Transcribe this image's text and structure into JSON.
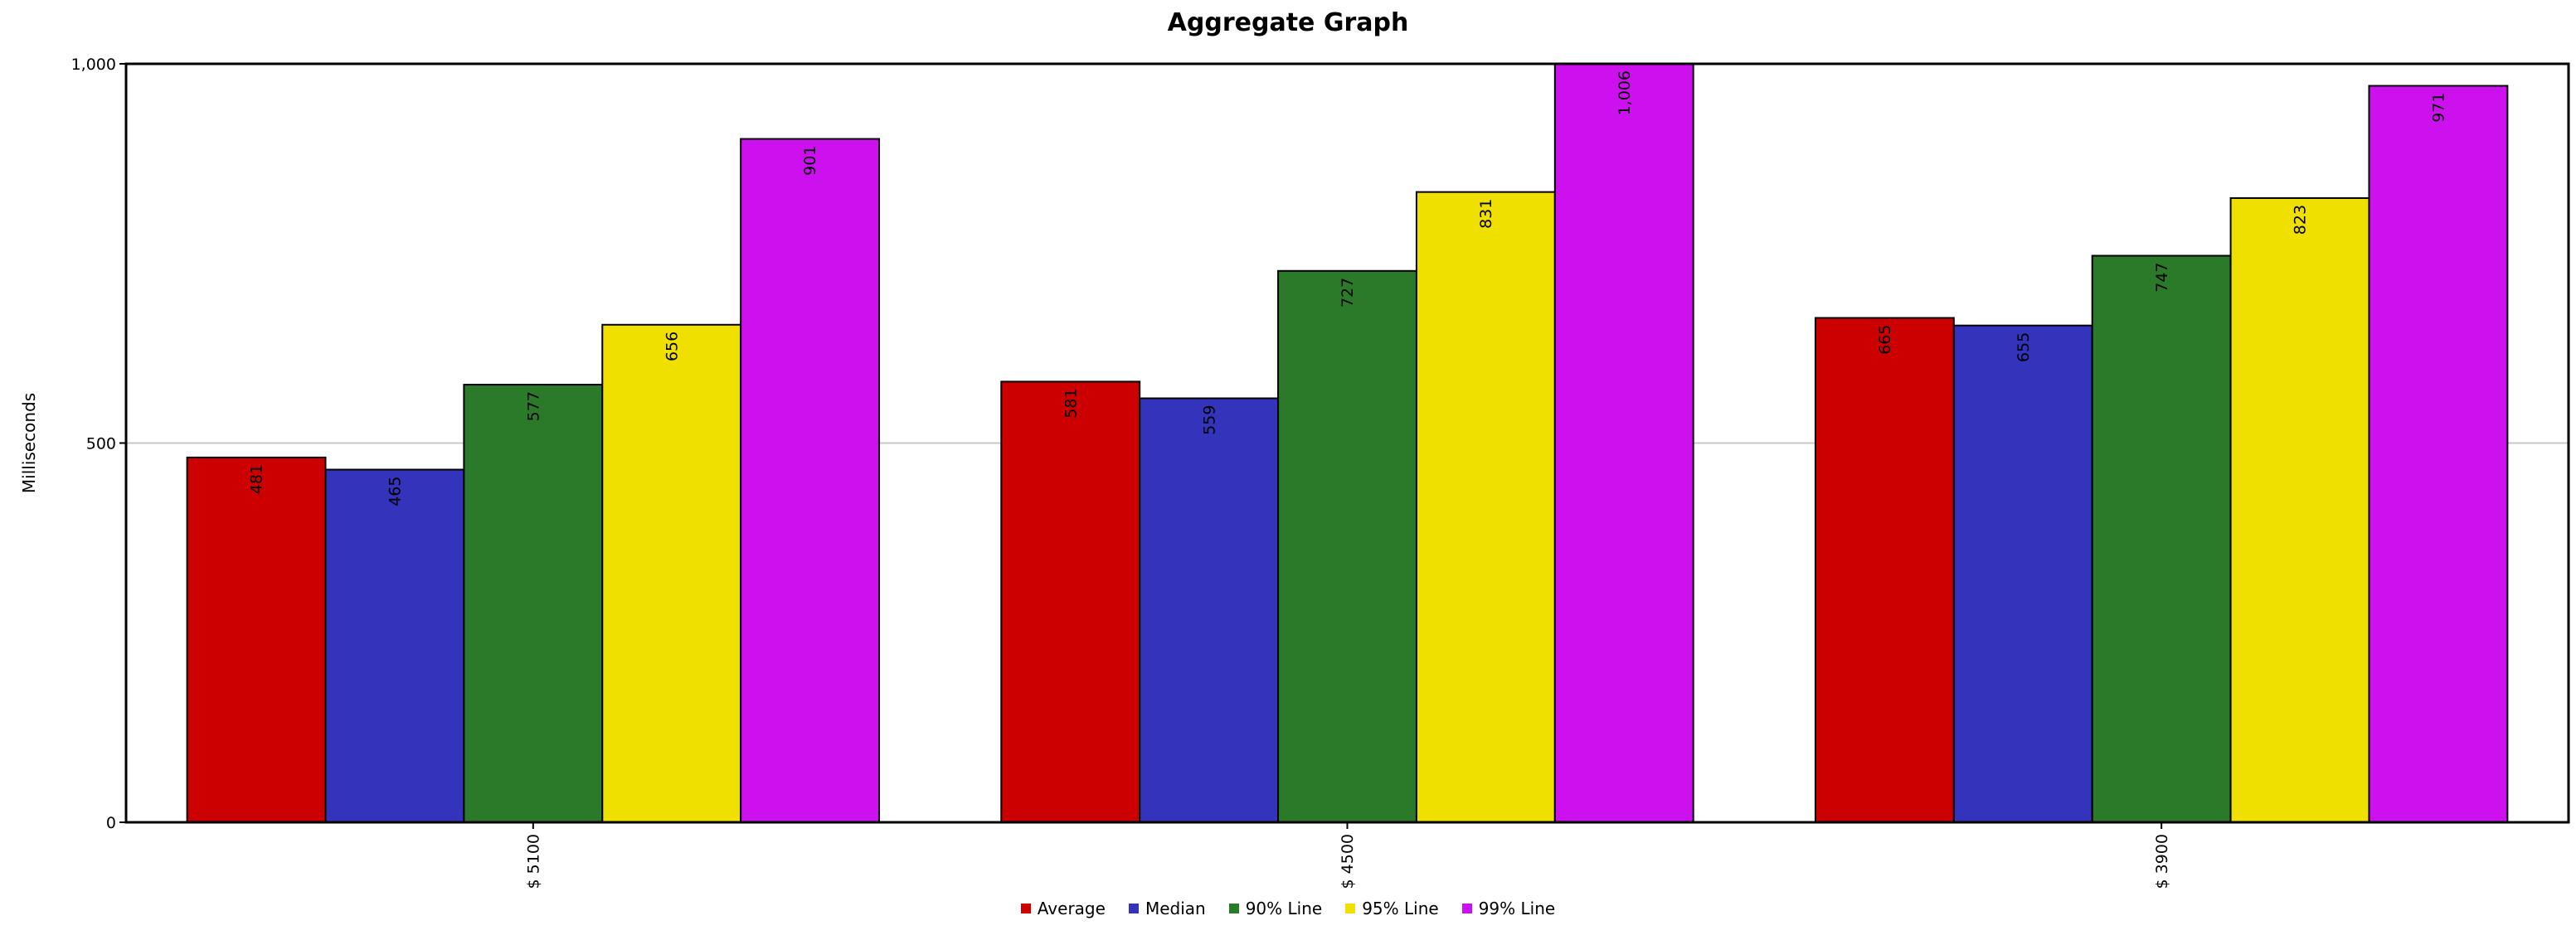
{
  "chart_data": {
    "type": "bar",
    "title": "Aggregate Graph",
    "xlabel": "",
    "ylabel": "Milliseconds",
    "categories": [
      "$ 5100",
      "$ 4500",
      "$ 3900"
    ],
    "ylim": [
      0,
      1000
    ],
    "yticks": [
      0,
      500,
      1000
    ],
    "ytick_labels": [
      "0",
      "500",
      "1,000"
    ],
    "grid": true,
    "legend_position": "bottom",
    "series": [
      {
        "name": "Average",
        "color": "#cc0000",
        "values": [
          481,
          581,
          665
        ],
        "labels": [
          "481",
          "581",
          "665"
        ]
      },
      {
        "name": "Median",
        "color": "#3333bb",
        "values": [
          465,
          559,
          655
        ],
        "labels": [
          "465",
          "559",
          "655"
        ]
      },
      {
        "name": "90% Line",
        "color": "#2a7a2a",
        "values": [
          577,
          727,
          747
        ],
        "labels": [
          "577",
          "727",
          "747"
        ]
      },
      {
        "name": "95% Line",
        "color": "#f0e000",
        "values": [
          656,
          831,
          823
        ],
        "labels": [
          "656",
          "831",
          "823"
        ]
      },
      {
        "name": "99% Line",
        "color": "#cc10ee",
        "values": [
          901,
          1006,
          971
        ],
        "labels": [
          "901",
          "1,006",
          "971"
        ]
      }
    ]
  }
}
